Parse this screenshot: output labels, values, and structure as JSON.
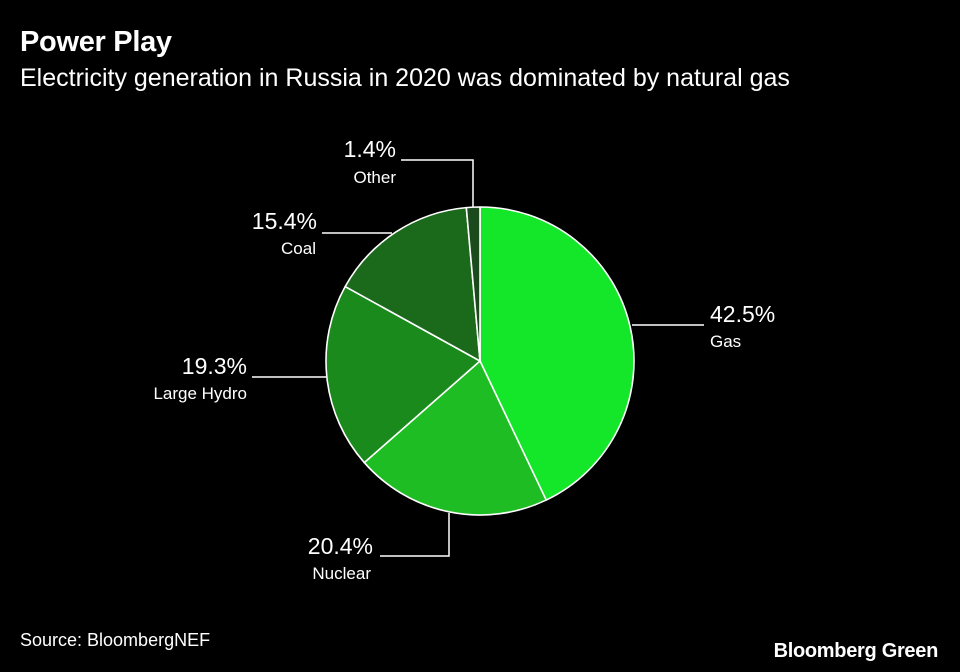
{
  "title": "Power Play",
  "subtitle": "Electricity generation in Russia in 2020 was dominated by natural gas",
  "source": "Source: BloombergNEF",
  "brand": "Bloomberg Green",
  "colors": {
    "background": "#000000",
    "text": "#ffffff",
    "slice_border": "#ffffff"
  },
  "chart_data": {
    "type": "pie",
    "start_angle_deg": 0,
    "direction": "clockwise",
    "slices": [
      {
        "label": "Gas",
        "value": 42.5,
        "display": "42.5%",
        "color": "#14e62a"
      },
      {
        "label": "Nuclear",
        "value": 20.4,
        "display": "20.4%",
        "color": "#1fbd24"
      },
      {
        "label": "Large Hydro",
        "value": 19.3,
        "display": "19.3%",
        "color": "#1b8a1c"
      },
      {
        "label": "Coal",
        "value": 15.4,
        "display": "15.4%",
        "color": "#1b6a1c"
      },
      {
        "label": "Other",
        "value": 1.4,
        "display": "1.4%",
        "color": "#1b4a1c"
      }
    ]
  }
}
